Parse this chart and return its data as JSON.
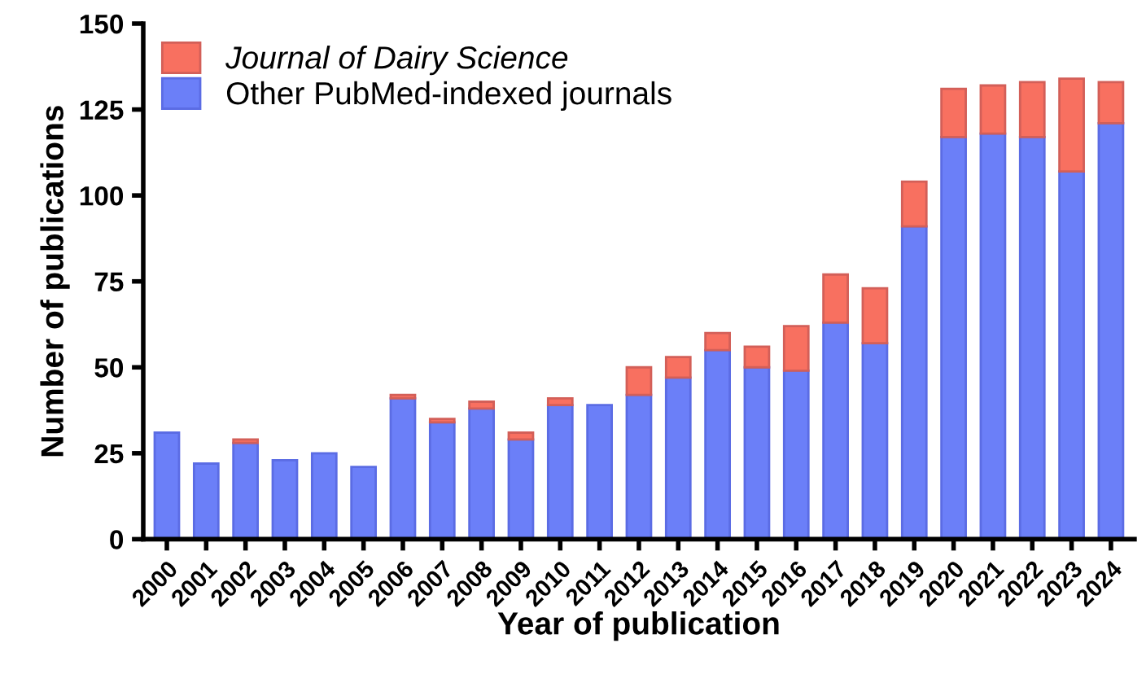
{
  "chart_data": {
    "type": "bar",
    "stacked": true,
    "xlabel": "Year of publication",
    "ylabel": "Number of publications",
    "categories": [
      "2000",
      "2001",
      "2002",
      "2003",
      "2004",
      "2005",
      "2006",
      "2007",
      "2008",
      "2009",
      "2010",
      "2011",
      "2012",
      "2013",
      "2014",
      "2015",
      "2016",
      "2017",
      "2018",
      "2019",
      "2020",
      "2021",
      "2022",
      "2023",
      "2024"
    ],
    "series": [
      {
        "name": "Other PubMed-indexed journals",
        "color": "#6b7ff8",
        "values": [
          31,
          22,
          28,
          23,
          25,
          21,
          41,
          34,
          38,
          29,
          39,
          39,
          42,
          47,
          55,
          50,
          49,
          63,
          57,
          91,
          117,
          118,
          117,
          107,
          121
        ]
      },
      {
        "name": "Journal of Dairy Science",
        "color": "#f87060",
        "values": [
          null,
          null,
          1,
          null,
          null,
          null,
          1,
          1,
          2,
          2,
          2,
          null,
          8,
          6,
          5,
          6,
          13,
          14,
          16,
          13,
          14,
          14,
          16,
          27,
          12
        ]
      }
    ],
    "ylim": [
      0,
      150
    ],
    "yticks": [
      0,
      25,
      50,
      75,
      100,
      125,
      150
    ],
    "grid": false,
    "legend": "top left"
  }
}
